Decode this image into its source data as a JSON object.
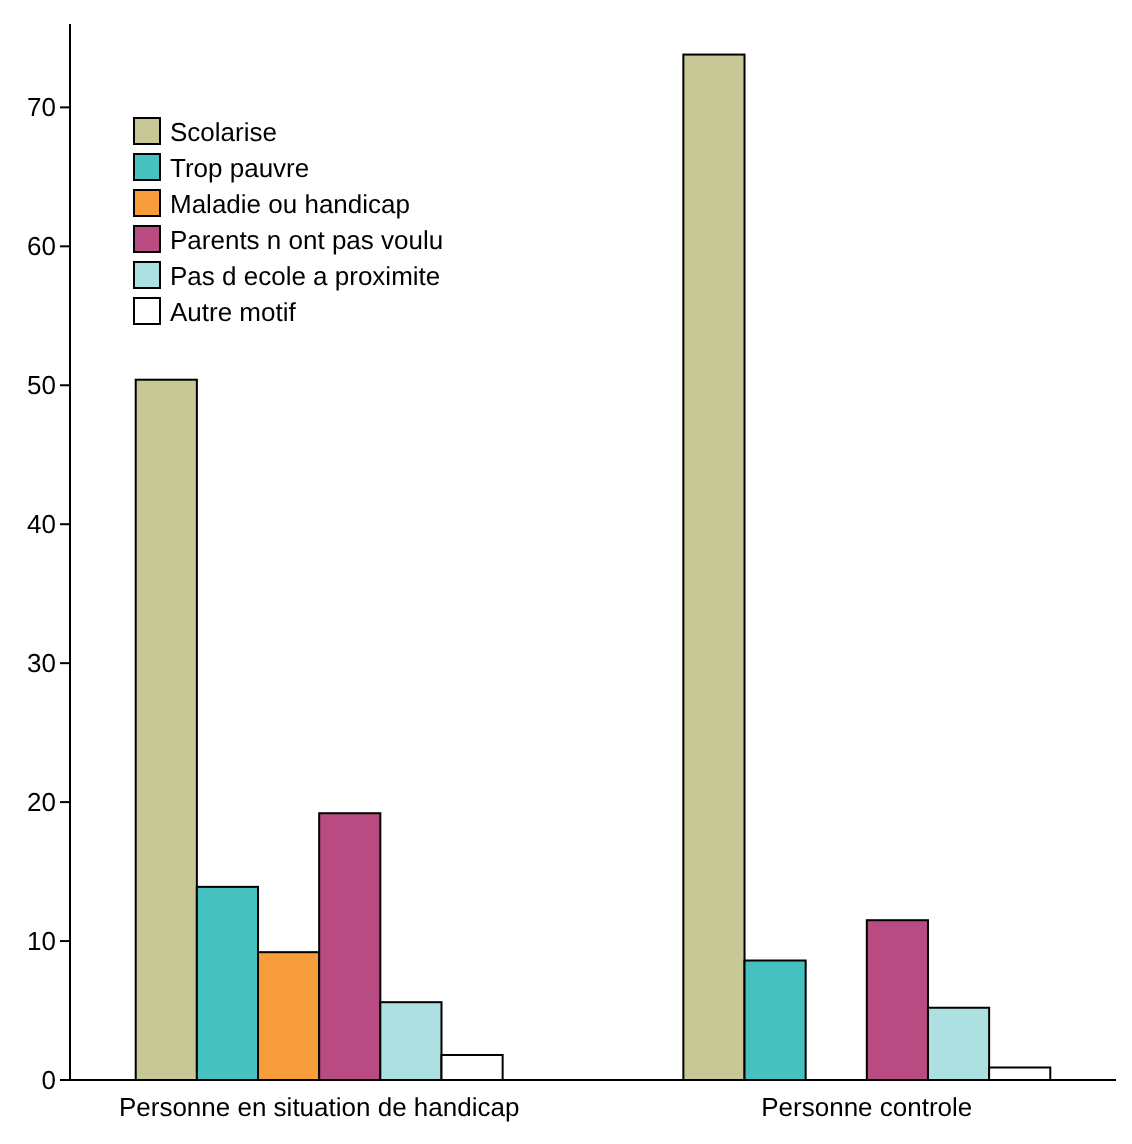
{
  "chart_data": {
    "type": "bar",
    "categories": [
      "Personne en situation de handicap",
      "Personne controle"
    ],
    "series": [
      {
        "name": "Scolarise",
        "color": "#c8c896",
        "values": [
          50.4,
          73.8
        ]
      },
      {
        "name": "Trop pauvre",
        "color": "#47c1bf",
        "values": [
          13.9,
          8.6
        ]
      },
      {
        "name": "Maladie ou handicap",
        "color": "#f79d3b",
        "values": [
          9.2,
          0
        ]
      },
      {
        "name": "Parents n ont pas voulu",
        "color": "#b94b83",
        "values": [
          19.2,
          11.5
        ]
      },
      {
        "name": "Pas d ecole a proximite",
        "color": "#ade0e0",
        "values": [
          5.6,
          5.2
        ]
      },
      {
        "name": "Autre motif",
        "color": "#ffffff",
        "values": [
          1.8,
          0.9
        ]
      }
    ],
    "ylim": [
      0,
      76
    ],
    "yticks": [
      0,
      10,
      20,
      30,
      40,
      50,
      60,
      70
    ],
    "legend": "top left",
    "grid": false
  }
}
